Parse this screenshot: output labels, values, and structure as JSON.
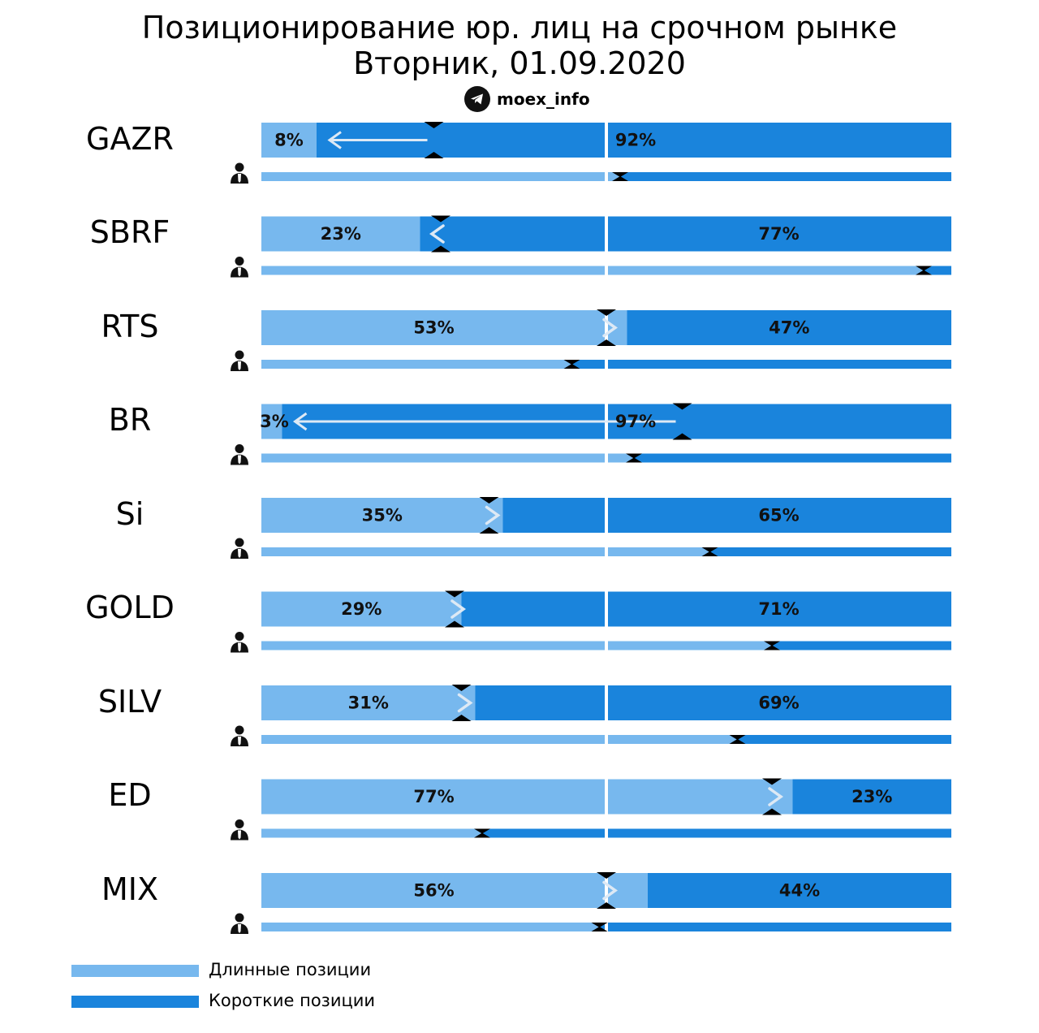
{
  "header": {
    "title": "Позиционирование юр. лиц на срочном рынке",
    "subtitle": "Вторник, 01.09.2020",
    "brand": "moex_info"
  },
  "legend": {
    "long_label": "Длинные позиции",
    "short_label": "Короткие позиции"
  },
  "colors": {
    "long": "#77b8ee",
    "short": "#1a84dc",
    "marker": "#000000",
    "arrow": "#dde9f5"
  },
  "chart_data": {
    "type": "bar",
    "title": "Позиционирование юр. лиц на срочном рынке",
    "scale": [
      0,
      100
    ],
    "series": [
      {
        "name": "Длинные позиции",
        "values": [
          8,
          23,
          53,
          3,
          35,
          29,
          31,
          77,
          56
        ]
      },
      {
        "name": "Короткие позиции",
        "values": [
          92,
          77,
          47,
          97,
          65,
          71,
          69,
          23,
          44
        ]
      }
    ],
    "rows": [
      {
        "ticker": "GAZR",
        "long": 8,
        "short": 92,
        "long_label": "8%",
        "short_label": "92%",
        "prev_long": 25,
        "arrow": "<",
        "persons_long": 52
      },
      {
        "ticker": "SBRF",
        "long": 23,
        "short": 77,
        "long_label": "23%",
        "short_label": "77%",
        "prev_long": 26,
        "arrow": "<",
        "persons_long": 96
      },
      {
        "ticker": "RTS",
        "long": 53,
        "short": 47,
        "long_label": "53%",
        "short_label": "47%",
        "prev_long": 50,
        "arrow": ">",
        "persons_long": 45
      },
      {
        "ticker": "BR",
        "long": 3,
        "short": 97,
        "long_label": "3%",
        "short_label": "97%",
        "prev_long": 61,
        "arrow": "<",
        "persons_long": 54
      },
      {
        "ticker": "Si",
        "long": 35,
        "short": 65,
        "long_label": "35%",
        "short_label": "65%",
        "prev_long": 33,
        "arrow": ">",
        "persons_long": 65
      },
      {
        "ticker": "GOLD",
        "long": 29,
        "short": 71,
        "long_label": "29%",
        "short_label": "71%",
        "prev_long": 28,
        "arrow": ">",
        "persons_long": 74
      },
      {
        "ticker": "SILV",
        "long": 31,
        "short": 69,
        "long_label": "31%",
        "short_label": "69%",
        "prev_long": 29,
        "arrow": ">",
        "persons_long": 69
      },
      {
        "ticker": "ED",
        "long": 77,
        "short": 23,
        "long_label": "77%",
        "short_label": "23%",
        "prev_long": 74,
        "arrow": ">",
        "persons_long": 32
      },
      {
        "ticker": "MIX",
        "long": 56,
        "short": 44,
        "long_label": "56%",
        "short_label": "44%",
        "prev_long": 50,
        "arrow": ">",
        "persons_long": 49
      }
    ]
  }
}
